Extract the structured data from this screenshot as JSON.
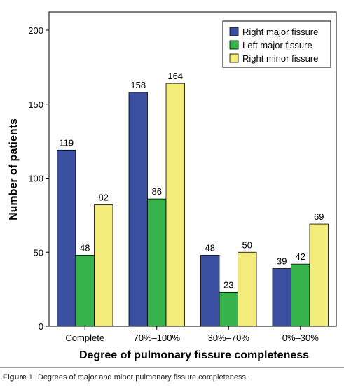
{
  "chart_data": {
    "type": "bar",
    "title": "",
    "xlabel": "Degree of pulmonary fissure completeness",
    "ylabel": "Number of patients",
    "ylim": [
      0,
      200
    ],
    "yticks": [
      0,
      50,
      100,
      150,
      200
    ],
    "categories": [
      "Complete",
      "70%–100%",
      "30%–70%",
      "0%–30%"
    ],
    "series": [
      {
        "name": "Right major fissure",
        "color": "#3a4fa0",
        "values": [
          119,
          158,
          48,
          39
        ]
      },
      {
        "name": "Left major fissure",
        "color": "#36b34a",
        "values": [
          48,
          86,
          23,
          42
        ]
      },
      {
        "name": "Right minor fissure",
        "color": "#f3ec7a",
        "values": [
          82,
          164,
          50,
          69
        ]
      }
    ],
    "legend_position": "top-right",
    "grid": false,
    "data_labels": true
  },
  "caption": {
    "label": "Figure",
    "number": "1",
    "text": "Degrees of major and minor pulmonary fissure completeness."
  }
}
